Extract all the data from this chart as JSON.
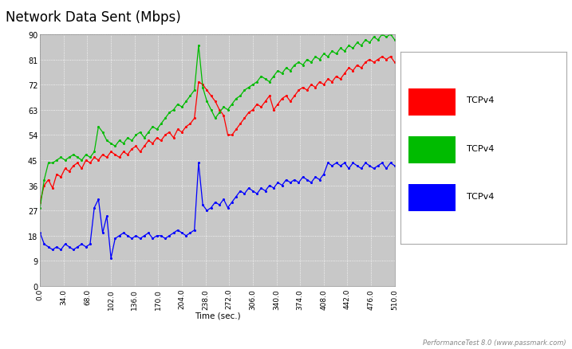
{
  "title": "Network Data Sent (Mbps)",
  "xlabel": "Time (sec.)",
  "xlim": [
    0,
    510
  ],
  "ylim": [
    0,
    90
  ],
  "yticks": [
    0,
    9,
    18,
    27,
    36,
    45,
    54,
    63,
    72,
    81,
    90
  ],
  "xticks": [
    0.0,
    34.0,
    68.0,
    102.0,
    136.0,
    170.0,
    204.0,
    238.0,
    272.0,
    306.0,
    340.0,
    374.0,
    408.0,
    442.0,
    476.0,
    510.0
  ],
  "fig_bg": "#ffffff",
  "plot_bg": "#c8c8c8",
  "legend_bg": "#ffffff",
  "legend_labels": [
    "TCPv4",
    "TCPv4",
    "TCPv4"
  ],
  "legend_colors": [
    "#ff0000",
    "#00bb00",
    "#0000ff"
  ],
  "watermark": "PerformanceTest 8.0 (www.passmark.com)",
  "red_x": [
    0,
    6,
    12,
    18,
    24,
    30,
    36,
    42,
    48,
    54,
    60,
    66,
    72,
    78,
    84,
    90,
    96,
    102,
    108,
    114,
    120,
    126,
    132,
    138,
    144,
    150,
    156,
    162,
    168,
    174,
    180,
    186,
    192,
    198,
    204,
    210,
    216,
    222,
    228,
    234,
    240,
    246,
    252,
    258,
    264,
    270,
    276,
    282,
    288,
    294,
    300,
    306,
    312,
    318,
    324,
    330,
    336,
    342,
    348,
    354,
    360,
    366,
    372,
    378,
    384,
    390,
    396,
    402,
    408,
    414,
    420,
    426,
    432,
    438,
    444,
    450,
    456,
    462,
    468,
    474,
    480,
    486,
    492,
    498,
    504,
    510
  ],
  "red_y": [
    30,
    36,
    38,
    35,
    40,
    39,
    42,
    41,
    43,
    44,
    42,
    45,
    44,
    46,
    45,
    47,
    46,
    48,
    47,
    46,
    48,
    47,
    49,
    50,
    48,
    50,
    52,
    51,
    53,
    52,
    54,
    55,
    53,
    56,
    55,
    57,
    58,
    60,
    73,
    72,
    70,
    68,
    66,
    63,
    61,
    54,
    54,
    56,
    58,
    60,
    62,
    63,
    65,
    64,
    66,
    68,
    63,
    65,
    67,
    68,
    66,
    68,
    70,
    71,
    70,
    72,
    71,
    73,
    72,
    74,
    73,
    75,
    74,
    76,
    78,
    77,
    79,
    78,
    80,
    81,
    80,
    81,
    82,
    81,
    82,
    80
  ],
  "green_x": [
    0,
    6,
    12,
    18,
    24,
    30,
    36,
    42,
    48,
    54,
    60,
    66,
    72,
    78,
    84,
    90,
    96,
    102,
    108,
    114,
    120,
    126,
    132,
    138,
    144,
    150,
    156,
    162,
    168,
    174,
    180,
    186,
    192,
    198,
    204,
    210,
    216,
    222,
    228,
    234,
    240,
    246,
    252,
    258,
    264,
    270,
    276,
    282,
    288,
    294,
    300,
    306,
    312,
    318,
    324,
    330,
    336,
    342,
    348,
    354,
    360,
    366,
    372,
    378,
    384,
    390,
    396,
    402,
    408,
    414,
    420,
    426,
    432,
    438,
    444,
    450,
    456,
    462,
    468,
    474,
    480,
    486,
    492,
    498,
    504,
    510
  ],
  "green_y": [
    28,
    38,
    44,
    44,
    45,
    46,
    45,
    46,
    47,
    46,
    45,
    47,
    46,
    48,
    57,
    55,
    52,
    51,
    50,
    52,
    51,
    53,
    52,
    54,
    55,
    53,
    55,
    57,
    56,
    58,
    60,
    62,
    63,
    65,
    64,
    66,
    68,
    70,
    86,
    71,
    66,
    63,
    60,
    62,
    64,
    63,
    65,
    67,
    68,
    70,
    71,
    72,
    73,
    75,
    74,
    73,
    75,
    77,
    76,
    78,
    77,
    79,
    80,
    79,
    81,
    80,
    82,
    81,
    83,
    82,
    84,
    83,
    85,
    84,
    86,
    85,
    87,
    86,
    88,
    87,
    89,
    88,
    90,
    89,
    90,
    88
  ],
  "blue_x": [
    0,
    6,
    12,
    18,
    24,
    30,
    36,
    42,
    48,
    54,
    60,
    66,
    72,
    78,
    84,
    90,
    96,
    102,
    108,
    114,
    120,
    126,
    132,
    138,
    144,
    150,
    156,
    162,
    168,
    174,
    180,
    186,
    192,
    198,
    204,
    210,
    216,
    222,
    228,
    234,
    240,
    246,
    252,
    258,
    264,
    270,
    276,
    282,
    288,
    294,
    300,
    306,
    312,
    318,
    324,
    330,
    336,
    342,
    348,
    354,
    360,
    366,
    372,
    378,
    384,
    390,
    396,
    402,
    408,
    414,
    420,
    426,
    432,
    438,
    444,
    450,
    456,
    462,
    468,
    474,
    480,
    486,
    492,
    498,
    504,
    510
  ],
  "blue_y": [
    19,
    15,
    14,
    13,
    14,
    13,
    15,
    14,
    13,
    14,
    15,
    14,
    15,
    28,
    31,
    19,
    25,
    10,
    17,
    18,
    19,
    18,
    17,
    18,
    17,
    18,
    19,
    17,
    18,
    18,
    17,
    18,
    19,
    20,
    19,
    18,
    19,
    20,
    44,
    29,
    27,
    28,
    30,
    29,
    31,
    28,
    30,
    32,
    34,
    33,
    35,
    34,
    33,
    35,
    34,
    36,
    35,
    37,
    36,
    38,
    37,
    38,
    37,
    39,
    38,
    37,
    39,
    38,
    40,
    44,
    43,
    44,
    43,
    44,
    42,
    44,
    43,
    42,
    44,
    43,
    42,
    43,
    44,
    42,
    44,
    43
  ]
}
